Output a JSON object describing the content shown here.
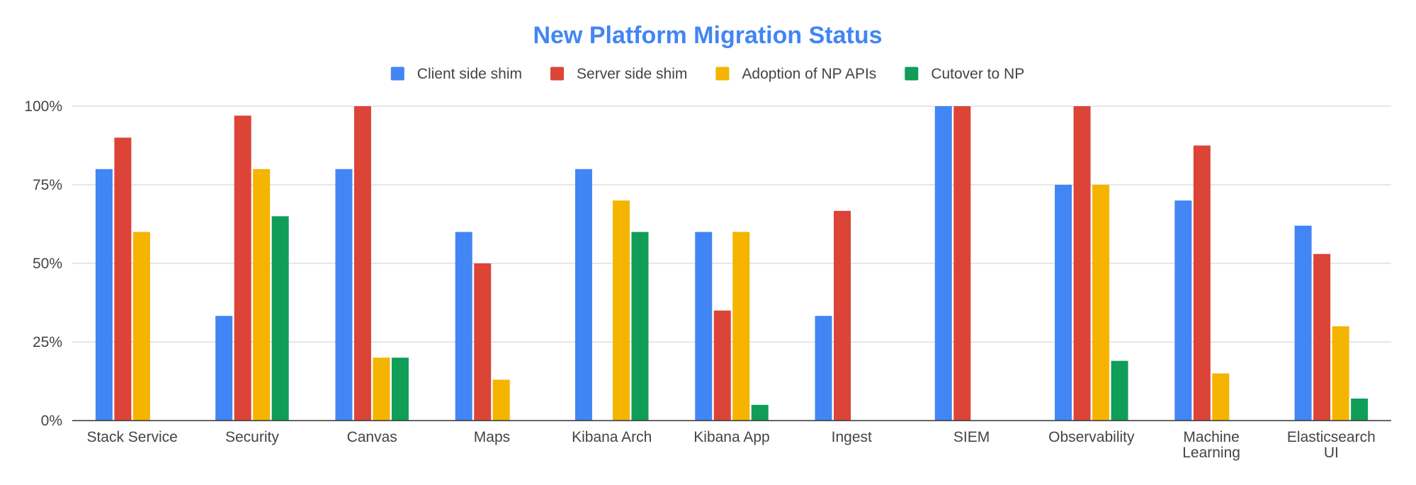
{
  "chart_data": {
    "type": "bar",
    "title": "New Platform Migration Status",
    "title_color": "#4285f4",
    "xlabel": "",
    "ylabel": "",
    "ylim": [
      0,
      100
    ],
    "y_ticks": [
      {
        "value": 0,
        "label": "0%"
      },
      {
        "value": 25,
        "label": "25%"
      },
      {
        "value": 50,
        "label": "50%"
      },
      {
        "value": 75,
        "label": "75%"
      },
      {
        "value": 100,
        "label": "100%"
      }
    ],
    "grid": true,
    "legend_position": "top",
    "categories": [
      [
        "Stack Service"
      ],
      [
        "Security"
      ],
      [
        "Canvas"
      ],
      [
        "Maps"
      ],
      [
        "Kibana Arch"
      ],
      [
        "Kibana App"
      ],
      [
        "Ingest"
      ],
      [
        "SIEM"
      ],
      [
        "Observability"
      ],
      [
        "Machine",
        "Learning"
      ],
      [
        "Elasticsearch",
        "UI"
      ]
    ],
    "series": [
      {
        "name": "Client side shim",
        "color": "#4285f4",
        "values": [
          80,
          33.3,
          80,
          60,
          80,
          60,
          33.3,
          100,
          75,
          70,
          62
        ]
      },
      {
        "name": "Server side shim",
        "color": "#db4437",
        "values": [
          90,
          97,
          100,
          50,
          null,
          35,
          66.7,
          100,
          100,
          87.5,
          53
        ]
      },
      {
        "name": "Adoption of NP APIs",
        "color": "#f4b400",
        "values": [
          60,
          80,
          20,
          13,
          70,
          60,
          null,
          null,
          75,
          15,
          30
        ]
      },
      {
        "name": "Cutover to NP",
        "color": "#0f9d58",
        "values": [
          null,
          65,
          20,
          null,
          60,
          5,
          null,
          null,
          19,
          null,
          7
        ]
      }
    ]
  }
}
